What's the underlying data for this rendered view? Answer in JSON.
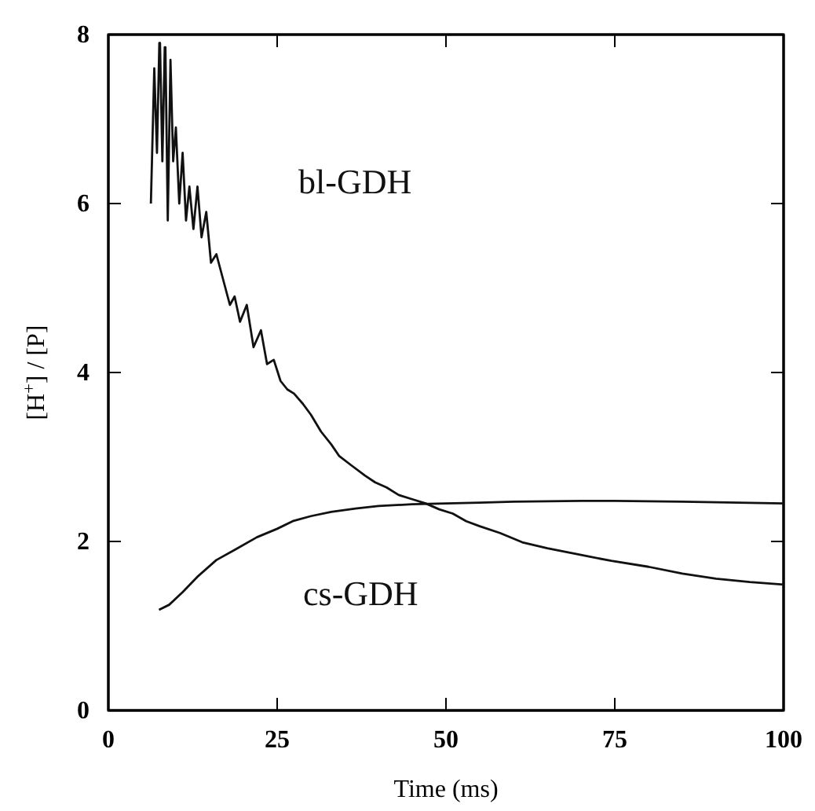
{
  "chart_data": {
    "type": "line",
    "xlabel": "Time (ms)",
    "ylabel": "[H$^{+}$] / [P]",
    "xlim": [
      0,
      100
    ],
    "ylim": [
      0,
      8
    ],
    "xticks": [
      0,
      25,
      50,
      75,
      100
    ],
    "yticks": [
      0,
      2,
      4,
      6,
      8
    ],
    "grid": false,
    "marker": "none",
    "line_style": "solid",
    "series": [
      {
        "name": "bl-GDH",
        "color": "#111111",
        "x": [
          6.3,
          6.8,
          7.2,
          7.55,
          7.65,
          8.0,
          8.35,
          8.45,
          8.8,
          9.2,
          9.6,
          10.0,
          10.5,
          11.0,
          11.5,
          12.0,
          12.6,
          13.2,
          13.8,
          14.5,
          15.2,
          16.0,
          17.0,
          18.0,
          18.7,
          19.5,
          20.5,
          21.5,
          22.6,
          23.5,
          24.5,
          25.5,
          26.5,
          27.5,
          28.8,
          30,
          31.5,
          33,
          34.2,
          36,
          38,
          39.5,
          41.2,
          43,
          45,
          47,
          49,
          51,
          53,
          55,
          58,
          61.3,
          65,
          70,
          74.5,
          80,
          85,
          90,
          95,
          100
        ],
        "values": [
          6.0,
          7.6,
          6.6,
          7.9,
          7.9,
          6.5,
          7.85,
          7.85,
          5.8,
          7.7,
          6.5,
          6.9,
          6.0,
          6.6,
          5.8,
          6.2,
          5.7,
          6.2,
          5.6,
          5.9,
          5.3,
          5.4,
          5.1,
          4.8,
          4.9,
          4.6,
          4.8,
          4.3,
          4.5,
          4.1,
          4.15,
          3.9,
          3.8,
          3.75,
          3.63,
          3.5,
          3.3,
          3.15,
          3.01,
          2.9,
          2.78,
          2.7,
          2.64,
          2.55,
          2.5,
          2.45,
          2.38,
          2.33,
          2.24,
          2.18,
          2.1,
          1.99,
          1.92,
          1.84,
          1.77,
          1.7,
          1.62,
          1.56,
          1.52,
          1.49
        ]
      },
      {
        "name": "cs-GDH",
        "color": "#111111",
        "x": [
          7.5,
          9,
          11,
          13.3,
          16,
          18.7,
          22,
          25,
          27.3,
          30,
          33,
          36.6,
          40,
          45,
          50,
          55,
          60,
          70,
          75,
          85,
          100
        ],
        "values": [
          1.19,
          1.25,
          1.4,
          1.59,
          1.78,
          1.9,
          2.05,
          2.15,
          2.24,
          2.3,
          2.35,
          2.39,
          2.42,
          2.44,
          2.45,
          2.46,
          2.47,
          2.48,
          2.48,
          2.47,
          2.45
        ]
      }
    ]
  }
}
